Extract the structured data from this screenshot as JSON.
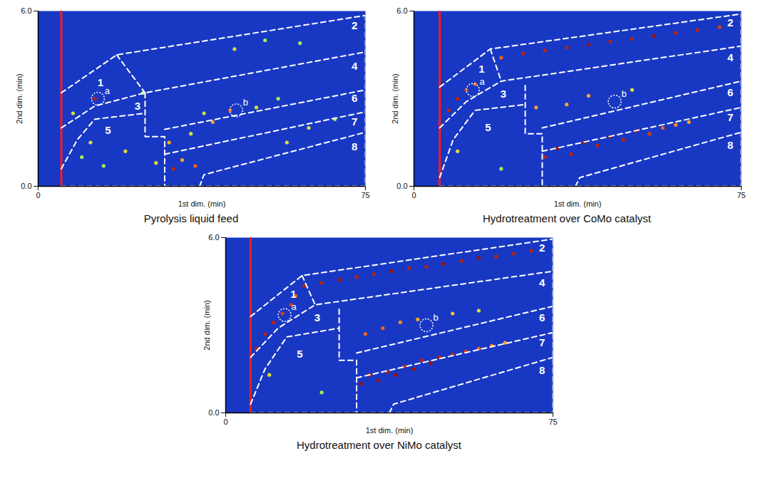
{
  "chart_data": [
    {
      "type": "chromatogram",
      "title": "Pyrolysis liquid feed",
      "x_label": "1st dim. (min)",
      "y_label": "2nd dim. (min)",
      "xlim": [
        0,
        75
      ],
      "ylim": [
        0,
        6
      ],
      "xticks": [
        0,
        75
      ],
      "yticks": [
        0,
        6
      ],
      "solvent_x": 5.3,
      "intensity_range": [
        0,
        1
      ],
      "boundaries": [
        [
          [
            5.3,
            3.2
          ],
          [
            18,
            4.5
          ],
          [
            75,
            5.85
          ]
        ],
        [
          [
            18,
            4.5
          ],
          [
            24.5,
            3.2
          ]
        ],
        [
          [
            5.3,
            2.0
          ],
          [
            13,
            2.75
          ],
          [
            24.5,
            3.2
          ],
          [
            75,
            4.6
          ]
        ],
        [
          [
            5.3,
            0.6
          ],
          [
            9,
            1.6
          ],
          [
            13,
            2.3
          ],
          [
            24.5,
            2.5
          ]
        ],
        [
          [
            24.5,
            3.2
          ],
          [
            24.5,
            1.7
          ],
          [
            29,
            1.7
          ],
          [
            29,
            0
          ]
        ],
        [
          [
            29,
            1.95
          ],
          [
            75,
            3.3
          ]
        ],
        [
          [
            29,
            1.1
          ],
          [
            75,
            2.55
          ]
        ],
        [
          [
            37,
            0
          ],
          [
            38,
            0.4
          ],
          [
            75,
            1.85
          ]
        ],
        [
          [
            5.3,
            0
          ],
          [
            75,
            0
          ],
          [
            75,
            5.85
          ]
        ]
      ],
      "regions": [
        {
          "label": "1",
          "x": 14.3,
          "y": 3.55
        },
        {
          "label": "2",
          "x": 72.5,
          "y": 5.5
        },
        {
          "label": "3",
          "x": 22.8,
          "y": 2.75
        },
        {
          "label": "4",
          "x": 72.5,
          "y": 4.1
        },
        {
          "label": "5",
          "x": 16,
          "y": 1.9
        },
        {
          "label": "6",
          "x": 72.5,
          "y": 3.0
        },
        {
          "label": "7",
          "x": 72.5,
          "y": 2.2
        },
        {
          "label": "8",
          "x": 72.5,
          "y": 1.35
        }
      ],
      "annotations": [
        {
          "label": "a",
          "x": 13.7,
          "y": 3.0
        },
        {
          "label": "b",
          "x": 45.4,
          "y": 2.6
        }
      ],
      "peaks": [
        [
          12,
          1.5,
          0.6
        ],
        [
          10,
          1.0,
          0.5
        ],
        [
          15,
          0.7,
          0.5
        ],
        [
          20,
          1.2,
          0.6
        ],
        [
          30,
          1.5,
          0.7
        ],
        [
          35,
          1.8,
          0.6
        ],
        [
          40,
          2.2,
          0.7
        ],
        [
          44,
          2.6,
          0.8
        ],
        [
          50,
          2.7,
          0.6
        ],
        [
          55,
          3.0,
          0.5
        ],
        [
          60,
          4.9,
          0.5
        ],
        [
          52,
          5.0,
          0.5
        ],
        [
          45,
          4.7,
          0.6
        ],
        [
          38,
          2.5,
          0.6
        ],
        [
          33,
          0.9,
          0.7
        ],
        [
          27,
          0.8,
          0.6
        ],
        [
          24,
          3.2,
          0.5
        ],
        [
          13,
          3.0,
          0.9
        ],
        [
          8,
          2.5,
          0.6
        ],
        [
          62,
          2.0,
          0.6
        ],
        [
          68,
          2.3,
          0.5
        ],
        [
          57,
          1.5,
          0.6
        ],
        [
          31,
          0.6,
          0.9
        ],
        [
          36,
          0.7,
          0.8
        ]
      ]
    },
    {
      "type": "chromatogram",
      "title": "Hydrotreatment over CoMo catalyst",
      "x_label": "1st dim. (min)",
      "y_label": "2nd dim. (min)",
      "xlim": [
        0,
        75
      ],
      "ylim": [
        0,
        6
      ],
      "xticks": [
        0,
        75
      ],
      "yticks": [
        0,
        6
      ],
      "solvent_x": 5.9,
      "intensity_range": [
        0,
        1
      ],
      "boundaries": [
        [
          [
            5.9,
            3.4
          ],
          [
            17.5,
            4.7
          ],
          [
            75,
            5.9
          ]
        ],
        [
          [
            17.5,
            4.7
          ],
          [
            20,
            3.6
          ]
        ],
        [
          [
            5.9,
            2.0
          ],
          [
            12,
            2.9
          ],
          [
            20,
            3.6
          ],
          [
            75,
            4.8
          ]
        ],
        [
          [
            5.9,
            0.3
          ],
          [
            9,
            1.6
          ],
          [
            14,
            2.6
          ],
          [
            25.5,
            2.8
          ]
        ],
        [
          [
            25.5,
            3.45
          ],
          [
            25.5,
            1.8
          ],
          [
            29.4,
            1.8
          ],
          [
            29.4,
            0
          ]
        ],
        [
          [
            29.4,
            2.0
          ],
          [
            75,
            3.6
          ]
        ],
        [
          [
            29.4,
            1.2
          ],
          [
            75,
            2.7
          ]
        ],
        [
          [
            37,
            0
          ],
          [
            38,
            0.3
          ],
          [
            75,
            1.85
          ]
        ],
        [
          [
            5.9,
            0
          ],
          [
            75,
            0
          ],
          [
            75,
            5.9
          ]
        ]
      ],
      "regions": [
        {
          "label": "1",
          "x": 15.5,
          "y": 4.0
        },
        {
          "label": "2",
          "x": 72.5,
          "y": 5.6
        },
        {
          "label": "3",
          "x": 20.5,
          "y": 3.15
        },
        {
          "label": "4",
          "x": 72.5,
          "y": 4.4
        },
        {
          "label": "5",
          "x": 17,
          "y": 2.0
        },
        {
          "label": "6",
          "x": 72.5,
          "y": 3.2
        },
        {
          "label": "7",
          "x": 72.5,
          "y": 2.35
        },
        {
          "label": "8",
          "x": 72.5,
          "y": 1.4
        }
      ],
      "annotations": [
        {
          "label": "a",
          "x": 13.5,
          "y": 3.3
        },
        {
          "label": "b",
          "x": 46,
          "y": 2.9
        }
      ],
      "peaks": [
        [
          20,
          4.4,
          0.8
        ],
        [
          25,
          4.55,
          0.9
        ],
        [
          30,
          4.65,
          0.9
        ],
        [
          35,
          4.75,
          0.9
        ],
        [
          40,
          4.85,
          0.95
        ],
        [
          45,
          4.95,
          0.9
        ],
        [
          50,
          5.05,
          0.9
        ],
        [
          55,
          5.15,
          0.95
        ],
        [
          60,
          5.25,
          0.9
        ],
        [
          65,
          5.35,
          0.9
        ],
        [
          70,
          5.45,
          0.85
        ],
        [
          30,
          1.0,
          0.9
        ],
        [
          33,
          1.3,
          0.95
        ],
        [
          36,
          1.1,
          0.9
        ],
        [
          39,
          1.5,
          0.95
        ],
        [
          42,
          1.4,
          0.9
        ],
        [
          45,
          1.7,
          0.95
        ],
        [
          48,
          1.6,
          0.9
        ],
        [
          51,
          1.9,
          0.9
        ],
        [
          54,
          1.8,
          0.85
        ],
        [
          57,
          2.0,
          0.8
        ],
        [
          60,
          2.1,
          0.75
        ],
        [
          63,
          2.2,
          0.7
        ],
        [
          35,
          2.8,
          0.7
        ],
        [
          40,
          3.1,
          0.7
        ],
        [
          50,
          3.3,
          0.6
        ],
        [
          28,
          2.7,
          0.7
        ],
        [
          8,
          2.6,
          0.9
        ],
        [
          10,
          3.0,
          0.9
        ],
        [
          12,
          3.3,
          0.85
        ],
        [
          14,
          3.5,
          0.8
        ],
        [
          10,
          1.2,
          0.6
        ],
        [
          20,
          0.6,
          0.5
        ]
      ]
    },
    {
      "type": "chromatogram",
      "title": "Hydrotreatment over NiMo catalyst",
      "x_label": "1st dim. (min)",
      "y_label": "2nd dim. (min)",
      "xlim": [
        0,
        75
      ],
      "ylim": [
        0,
        6
      ],
      "xticks": [
        0,
        75
      ],
      "yticks": [
        0,
        6
      ],
      "solvent_x": 5.7,
      "intensity_range": [
        0,
        1
      ],
      "boundaries": [
        [
          [
            5.7,
            3.3
          ],
          [
            17.5,
            4.7
          ],
          [
            75,
            5.95
          ]
        ],
        [
          [
            17.5,
            4.7
          ],
          [
            20.5,
            3.7
          ]
        ],
        [
          [
            5.7,
            1.9
          ],
          [
            12,
            2.9
          ],
          [
            20.5,
            3.7
          ],
          [
            75,
            4.85
          ]
        ],
        [
          [
            5.7,
            0.3
          ],
          [
            9,
            1.5
          ],
          [
            14,
            2.6
          ],
          [
            26,
            2.9
          ]
        ],
        [
          [
            26,
            3.55
          ],
          [
            26,
            1.8
          ],
          [
            30,
            1.8
          ],
          [
            30,
            0
          ]
        ],
        [
          [
            30,
            2.05
          ],
          [
            75,
            3.65
          ]
        ],
        [
          [
            30,
            1.2
          ],
          [
            75,
            2.75
          ]
        ],
        [
          [
            37.5,
            0
          ],
          [
            38.5,
            0.3
          ],
          [
            75,
            1.9
          ]
        ],
        [
          [
            5.7,
            0
          ],
          [
            75,
            0
          ],
          [
            75,
            5.95
          ]
        ]
      ],
      "regions": [
        {
          "label": "1",
          "x": 15.5,
          "y": 4.05
        },
        {
          "label": "2",
          "x": 72.5,
          "y": 5.65
        },
        {
          "label": "3",
          "x": 21,
          "y": 3.25
        },
        {
          "label": "4",
          "x": 72.5,
          "y": 4.45
        },
        {
          "label": "5",
          "x": 17,
          "y": 2.0
        },
        {
          "label": "6",
          "x": 72.5,
          "y": 3.25
        },
        {
          "label": "7",
          "x": 72.5,
          "y": 2.4
        },
        {
          "label": "8",
          "x": 72.5,
          "y": 1.45
        }
      ],
      "annotations": [
        {
          "label": "a",
          "x": 13.5,
          "y": 3.35
        },
        {
          "label": "b",
          "x": 46,
          "y": 3.0
        }
      ],
      "peaks": [
        [
          18,
          4.35,
          0.9
        ],
        [
          22,
          4.45,
          0.9
        ],
        [
          26,
          4.55,
          0.95
        ],
        [
          30,
          4.65,
          0.9
        ],
        [
          34,
          4.75,
          0.9
        ],
        [
          38,
          4.85,
          0.95
        ],
        [
          42,
          4.95,
          0.9
        ],
        [
          46,
          5.0,
          0.9
        ],
        [
          50,
          5.1,
          0.95
        ],
        [
          54,
          5.2,
          0.9
        ],
        [
          58,
          5.3,
          0.95
        ],
        [
          62,
          5.35,
          0.9
        ],
        [
          66,
          5.45,
          0.9
        ],
        [
          70,
          5.55,
          0.9
        ],
        [
          31,
          1.0,
          0.95
        ],
        [
          33,
          1.3,
          0.9
        ],
        [
          35,
          1.1,
          0.95
        ],
        [
          37,
          1.4,
          0.9
        ],
        [
          39,
          1.3,
          0.95
        ],
        [
          41,
          1.6,
          0.9
        ],
        [
          43,
          1.5,
          0.95
        ],
        [
          45,
          1.8,
          0.9
        ],
        [
          47,
          1.7,
          0.95
        ],
        [
          49,
          1.9,
          0.9
        ],
        [
          52,
          2.0,
          0.9
        ],
        [
          55,
          2.1,
          0.85
        ],
        [
          58,
          2.2,
          0.8
        ],
        [
          61,
          2.3,
          0.75
        ],
        [
          64,
          2.4,
          0.7
        ],
        [
          32,
          2.7,
          0.8
        ],
        [
          36,
          2.9,
          0.8
        ],
        [
          40,
          3.1,
          0.75
        ],
        [
          44,
          3.2,
          0.7
        ],
        [
          52,
          3.4,
          0.65
        ],
        [
          58,
          3.5,
          0.6
        ],
        [
          7,
          2.2,
          0.9
        ],
        [
          9,
          2.7,
          0.9
        ],
        [
          11,
          3.1,
          0.9
        ],
        [
          13,
          3.4,
          0.85
        ],
        [
          15,
          3.7,
          0.85
        ],
        [
          16,
          4.0,
          0.8
        ],
        [
          10,
          1.3,
          0.6
        ],
        [
          22,
          0.7,
          0.5
        ]
      ]
    }
  ]
}
